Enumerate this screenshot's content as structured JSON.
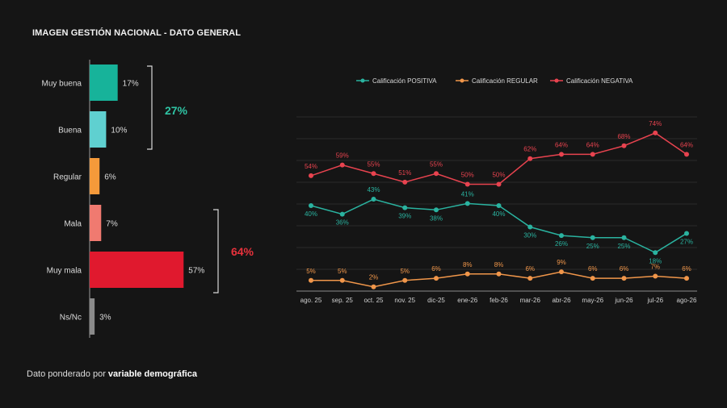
{
  "title": "IMAGEN GESTIÓN NACIONAL - DATO GENERAL",
  "footer": {
    "prefix": "Dato ponderado por",
    "bold": "variable demográfica"
  },
  "chart_data": [
    {
      "type": "bar",
      "orientation": "horizontal",
      "categories": [
        "Muy buena",
        "Buena",
        "Regular",
        "Mala",
        "Muy mala",
        "Ns/Nc"
      ],
      "values": [
        17,
        10,
        6,
        7,
        57,
        3
      ],
      "value_labels": [
        "17%",
        "10%",
        "6%",
        "7%",
        "57%",
        "3%"
      ],
      "colors": [
        "#17b39a",
        "#5fd0d0",
        "#f59a3a",
        "#f07a70",
        "#e0192e",
        "#8a8a8a"
      ],
      "groups": [
        {
          "label": "27%",
          "members": [
            "Muy buena",
            "Buena"
          ],
          "color": "#2fc4a4"
        },
        {
          "label": "64%",
          "members": [
            "Mala",
            "Muy mala"
          ],
          "color": "#e8323c"
        }
      ]
    },
    {
      "type": "line",
      "categories": [
        "ago. 25",
        "sep. 25",
        "oct. 25",
        "nov. 25",
        "dic-25",
        "ene-26",
        "feb-26",
        "mar-26",
        "abr-26",
        "may-26",
        "jun-26",
        "jul-26",
        "ago-26"
      ],
      "series": [
        {
          "name": "Calificación POSITIVA",
          "color": "#2ab3a0",
          "values": [
            40,
            36,
            43,
            39,
            38,
            41,
            40,
            30,
            26,
            25,
            25,
            18,
            27
          ],
          "labels": [
            "40%",
            "36%",
            "43%",
            "39%",
            "38%",
            "41%",
            "40%",
            "30%",
            "26%",
            "25%",
            "25%",
            "18%",
            "27%"
          ]
        },
        {
          "name": "Calificación REGULAR",
          "color": "#f0964a",
          "values": [
            5,
            5,
            2,
            5,
            6,
            8,
            8,
            6,
            9,
            6,
            6,
            7,
            6
          ],
          "labels": [
            "5%",
            "5%",
            "2%",
            "5%",
            "6%",
            "8%",
            "8%",
            "6%",
            "9%",
            "6%",
            "6%",
            "7%",
            "6%"
          ]
        },
        {
          "name": "Calificación NEGATIVA",
          "color": "#e8434f",
          "values": [
            54,
            59,
            55,
            51,
            55,
            50,
            50,
            62,
            64,
            64,
            68,
            74,
            64
          ],
          "labels": [
            "54%",
            "59%",
            "55%",
            "51%",
            "55%",
            "50%",
            "50%",
            "62%",
            "64%",
            "64%",
            "68%",
            "74%",
            "64%"
          ]
        }
      ],
      "grid": true,
      "legend_position": "top"
    }
  ]
}
